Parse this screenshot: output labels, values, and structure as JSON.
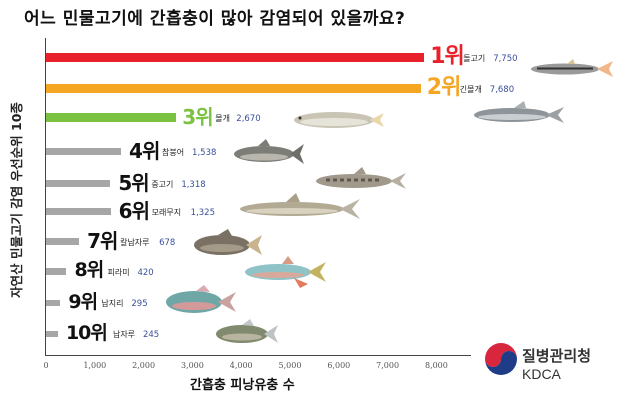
{
  "title": "어느 민물고기에 간흡충이 많아 감염되어 있을까요?",
  "logo": {
    "name_ko": "질병관리청",
    "name_en": "KDCA"
  },
  "chart_data": {
    "type": "bar",
    "orientation": "horizontal",
    "title": "어느 민물고기에 간흡충이 많아 감염되어 있을까요?",
    "xlabel": "간흡충 피낭유충 수",
    "ylabel": "자연산 민물고기 감염 우선순위 10종",
    "xlim": [
      0,
      8500
    ],
    "xticks": [
      "0",
      "1,000",
      "2,000",
      "3,000",
      "4,000",
      "5,000",
      "6,000",
      "7,000",
      "8,000"
    ],
    "grid": false,
    "legend": "none",
    "categories": [
      "돌고기",
      "긴몰개",
      "몰개",
      "참붕어",
      "중고기",
      "모래무지",
      "칼납자루",
      "피라미",
      "납지리",
      "납자루"
    ],
    "ranks": [
      "1위",
      "2위",
      "3위",
      "4위",
      "5위",
      "6위",
      "7위",
      "8위",
      "9위",
      "10위"
    ],
    "values": [
      7750,
      7680,
      2670,
      1538,
      1318,
      1325,
      678,
      420,
      295,
      245
    ],
    "value_labels": [
      "7,750",
      "7,680",
      "2,670",
      "1,538",
      "1,318",
      "1,325",
      "678",
      "420",
      "295",
      "245"
    ],
    "colors": [
      "#e8212b",
      "#f5a623",
      "#7cc242",
      "#a6a6a6",
      "#a6a6a6",
      "#a6a6a6",
      "#a6a6a6",
      "#a6a6a6",
      "#a6a6a6",
      "#a6a6a6"
    ]
  }
}
